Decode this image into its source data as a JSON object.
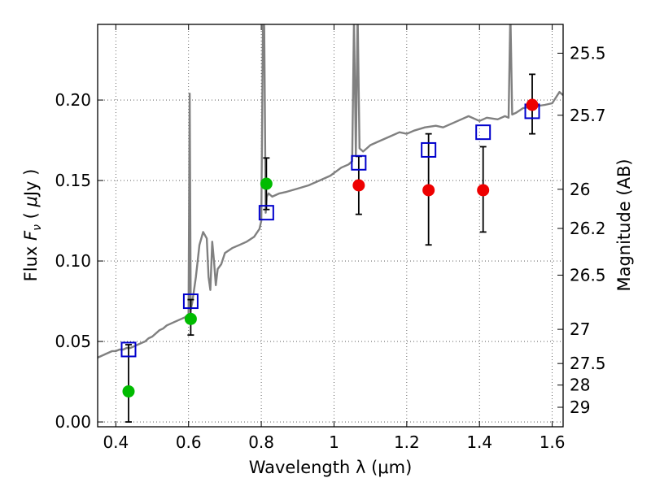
{
  "chart_data": {
    "type": "scatter",
    "title": "",
    "xlabel": "Wavelength  λ (μm)",
    "ylabel_parts": [
      "Flux ",
      "F",
      "ν",
      " ( ",
      "μ",
      "Jy )"
    ],
    "y2label": "Magnitude (AB)",
    "xlim": [
      0.35,
      1.63
    ],
    "ylim": [
      -0.003,
      0.247
    ],
    "grid": true,
    "legend": "none",
    "x_ticks": [
      {
        "value": 0.4,
        "label": "0.4"
      },
      {
        "value": 0.6,
        "label": "0.6"
      },
      {
        "value": 0.8,
        "label": "0.8"
      },
      {
        "value": 1.0,
        "label": "1"
      },
      {
        "value": 1.2,
        "label": "1.2"
      },
      {
        "value": 1.4,
        "label": "1.4"
      },
      {
        "value": 1.6,
        "label": "1.6"
      }
    ],
    "y_ticks": [
      {
        "value": 0.0,
        "label": "0.00"
      },
      {
        "value": 0.05,
        "label": "0.05"
      },
      {
        "value": 0.1,
        "label": "0.10"
      },
      {
        "value": 0.15,
        "label": "0.15"
      },
      {
        "value": 0.2,
        "label": "0.20"
      }
    ],
    "mag_ticks": [
      {
        "label": "25.5"
      },
      {
        "label": "25.7"
      },
      {
        "label": "26"
      },
      {
        "label": "26.2"
      },
      {
        "label": "26.5"
      },
      {
        "label": "27"
      },
      {
        "label": "27.5"
      },
      {
        "label": "28"
      },
      {
        "label": "29"
      }
    ],
    "colors": {
      "spectrum": "#808080",
      "model_box": "#0000cc",
      "green_points": "#00bb00",
      "red_points": "#ee0000",
      "error_bar": "#000000",
      "grid": "#444444"
    },
    "spectrum": {
      "x": [
        0.35,
        0.36,
        0.37,
        0.38,
        0.39,
        0.4,
        0.41,
        0.42,
        0.43,
        0.44,
        0.45,
        0.46,
        0.47,
        0.48,
        0.49,
        0.5,
        0.51,
        0.52,
        0.53,
        0.54,
        0.55,
        0.56,
        0.57,
        0.58,
        0.59,
        0.595,
        0.6,
        0.603,
        0.606,
        0.61,
        0.62,
        0.63,
        0.64,
        0.65,
        0.655,
        0.66,
        0.665,
        0.67,
        0.675,
        0.68,
        0.69,
        0.7,
        0.72,
        0.74,
        0.76,
        0.78,
        0.795,
        0.8,
        0.805,
        0.808,
        0.812,
        0.815,
        0.82,
        0.83,
        0.85,
        0.87,
        0.9,
        0.93,
        0.96,
        0.99,
        1.02,
        1.04,
        1.05,
        1.055,
        1.06,
        1.065,
        1.07,
        1.08,
        1.09,
        1.1,
        1.12,
        1.15,
        1.18,
        1.2,
        1.22,
        1.25,
        1.28,
        1.3,
        1.33,
        1.35,
        1.37,
        1.4,
        1.42,
        1.45,
        1.47,
        1.48,
        1.485,
        1.49,
        1.5,
        1.52,
        1.55,
        1.58,
        1.6,
        1.62,
        1.63
      ],
      "flux": [
        0.04,
        0.041,
        0.042,
        0.043,
        0.044,
        0.044,
        0.045,
        0.045,
        0.046,
        0.046,
        0.047,
        0.048,
        0.049,
        0.05,
        0.052,
        0.053,
        0.055,
        0.057,
        0.058,
        0.06,
        0.061,
        0.062,
        0.063,
        0.064,
        0.065,
        0.066,
        0.067,
        0.204,
        0.07,
        0.074,
        0.09,
        0.11,
        0.118,
        0.114,
        0.09,
        0.082,
        0.112,
        0.1,
        0.085,
        0.095,
        0.098,
        0.105,
        0.108,
        0.11,
        0.112,
        0.115,
        0.12,
        0.125,
        0.255,
        0.245,
        0.13,
        0.14,
        0.142,
        0.14,
        0.142,
        0.143,
        0.145,
        0.147,
        0.15,
        0.153,
        0.158,
        0.16,
        0.162,
        0.25,
        0.166,
        0.255,
        0.17,
        0.168,
        0.17,
        0.172,
        0.174,
        0.177,
        0.18,
        0.179,
        0.181,
        0.183,
        0.184,
        0.183,
        0.186,
        0.188,
        0.19,
        0.187,
        0.189,
        0.188,
        0.19,
        0.189,
        0.255,
        0.191,
        0.192,
        0.195,
        0.196,
        0.197,
        0.198,
        0.205,
        0.203
      ]
    },
    "model_boxes": [
      {
        "x": 0.435,
        "y": 0.045
      },
      {
        "x": 0.606,
        "y": 0.075
      },
      {
        "x": 0.814,
        "y": 0.13
      },
      {
        "x": 1.068,
        "y": 0.161
      },
      {
        "x": 1.26,
        "y": 0.169
      },
      {
        "x": 1.41,
        "y": 0.18
      },
      {
        "x": 1.545,
        "y": 0.193
      }
    ],
    "green_points": [
      {
        "x": 0.435,
        "y": 0.019,
        "err_low": 0.019,
        "err_high": 0.029
      },
      {
        "x": 0.606,
        "y": 0.064,
        "err_low": 0.01,
        "err_high": 0.012
      },
      {
        "x": 0.814,
        "y": 0.148,
        "err_low": 0.016,
        "err_high": 0.016
      }
    ],
    "red_points": [
      {
        "x": 1.068,
        "y": 0.147,
        "err_low": 0.018,
        "err_high": 0.018
      },
      {
        "x": 1.26,
        "y": 0.144,
        "err_low": 0.034,
        "err_high": 0.035
      },
      {
        "x": 1.41,
        "y": 0.144,
        "err_low": 0.026,
        "err_high": 0.027
      },
      {
        "x": 1.545,
        "y": 0.197,
        "err_low": 0.018,
        "err_high": 0.019
      }
    ]
  }
}
